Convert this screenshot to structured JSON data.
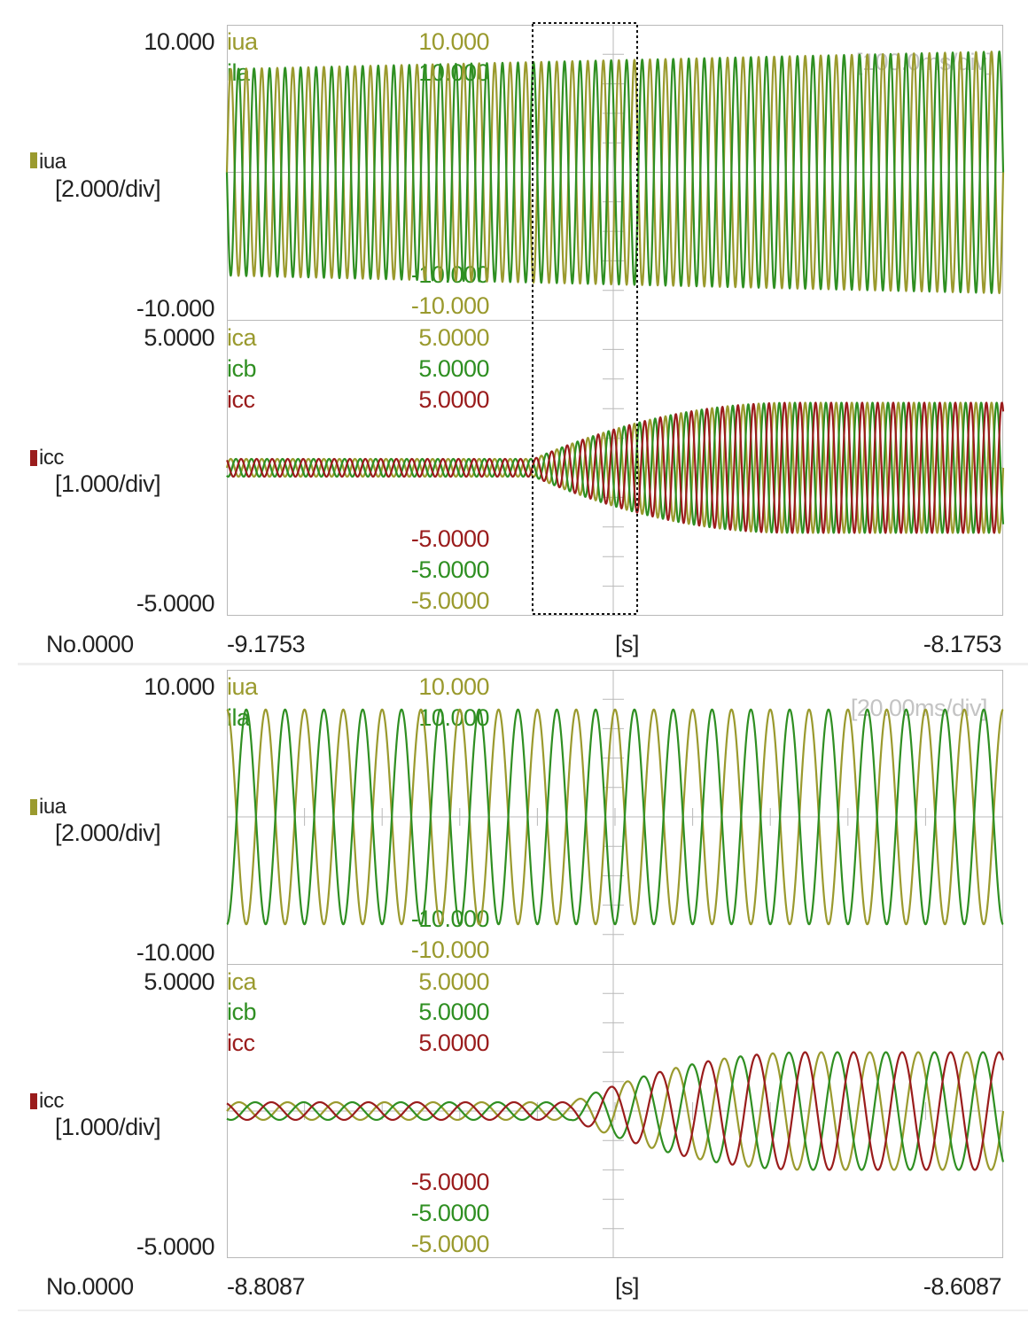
{
  "colors": {
    "iua": "#9a9a2e",
    "ila": "#2f8f22",
    "ica": "#9a9a2e",
    "icb": "#2f8f22",
    "icc": "#9a1c1c",
    "grid": "#b9b9b9",
    "timescale": "#c4c4c4"
  },
  "views": [
    {
      "timescale": "[100.0ms/div]",
      "record_no": "No.0000",
      "time_unit": "[s]",
      "t_start": "-9.1753",
      "t_end": "-8.1753",
      "selection_box": true,
      "top_panel": {
        "axis_max": "10.000",
        "axis_min": "-10.000",
        "marker_channel": "iua",
        "marker_scale": "[2.000/div]",
        "channels": [
          {
            "name": "iua",
            "max": "10.000",
            "min": "-10.000"
          },
          {
            "name": "ila",
            "max": "10.000",
            "min": "-10.000"
          }
        ]
      },
      "bottom_panel": {
        "axis_max": "5.0000",
        "axis_min": "-5.0000",
        "marker_channel": "icc",
        "marker_scale": "[1.000/div]",
        "channels": [
          {
            "name": "ica",
            "max": "5.0000",
            "min": "-5.0000"
          },
          {
            "name": "icb",
            "max": "5.0000",
            "min": "-5.0000"
          },
          {
            "name": "icc",
            "max": "5.0000",
            "min": "-5.0000"
          }
        ]
      }
    },
    {
      "timescale": "[20.00ms/div]",
      "record_no": "No.0000",
      "time_unit": "[s]",
      "t_start": "-8.8087",
      "t_end": "-8.6087",
      "selection_box": false,
      "top_panel": {
        "axis_max": "10.000",
        "axis_min": "-10.000",
        "marker_channel": "iua",
        "marker_scale": "[2.000/div]",
        "channels": [
          {
            "name": "iua",
            "max": "10.000",
            "min": "-10.000"
          },
          {
            "name": "ila",
            "max": "10.000",
            "min": "-10.000"
          }
        ]
      },
      "bottom_panel": {
        "axis_max": "5.0000",
        "axis_min": "-5.0000",
        "marker_channel": "icc",
        "marker_scale": "[1.000/div]",
        "channels": [
          {
            "name": "ica",
            "max": "5.0000",
            "min": "-5.0000"
          },
          {
            "name": "icb",
            "max": "5.0000",
            "min": "-5.0000"
          },
          {
            "name": "icc",
            "max": "5.0000",
            "min": "-5.0000"
          }
        ]
      }
    }
  ],
  "chart_data": [
    {
      "type": "line",
      "title": "",
      "timescale": "[100.0ms/div]",
      "x_range": [
        -9.1753,
        -8.1753
      ],
      "x_unit": "s",
      "panels": [
        {
          "ylim": [
            -10,
            10
          ],
          "series": [
            {
              "name": "iua",
              "waveform": "sine",
              "frequency_hz": 50,
              "amplitude_start": 7.0,
              "amplitude_end": 8.2,
              "phase_deg": 0
            },
            {
              "name": "ila",
              "waveform": "sine",
              "frequency_hz": 50,
              "amplitude_start": 7.0,
              "amplitude_end": 8.2,
              "phase_deg": 180
            }
          ]
        },
        {
          "ylim": [
            -5,
            5
          ],
          "series": [
            {
              "name": "ica",
              "waveform": "sine",
              "frequency_hz": 50,
              "amplitude_start": 0.3,
              "amplitude_end": 2.2,
              "phase_deg": 0,
              "growth_start_s": -8.78
            },
            {
              "name": "icb",
              "waveform": "sine",
              "frequency_hz": 50,
              "amplitude_start": 0.3,
              "amplitude_end": 2.2,
              "phase_deg": -120,
              "growth_start_s": -8.78
            },
            {
              "name": "icc",
              "waveform": "sine",
              "frequency_hz": 50,
              "amplitude_start": 0.3,
              "amplitude_end": 2.2,
              "phase_deg": 120,
              "growth_start_s": -8.78
            }
          ]
        }
      ]
    },
    {
      "type": "line",
      "title": "",
      "timescale": "[20.00ms/div]",
      "x_range": [
        -8.8087,
        -8.6087
      ],
      "x_unit": "s",
      "panels": [
        {
          "ylim": [
            -10,
            10
          ],
          "series": [
            {
              "name": "iua",
              "waveform": "sine",
              "frequency_hz": 100,
              "amplitude": 7.3,
              "phase_deg": 90
            },
            {
              "name": "ila",
              "waveform": "sine",
              "frequency_hz": 100,
              "amplitude": 7.3,
              "phase_deg": -90
            }
          ]
        },
        {
          "ylim": [
            -5,
            5
          ],
          "series": [
            {
              "name": "ica",
              "waveform": "sine",
              "frequency_hz": 80,
              "amplitude_start": 0.3,
              "amplitude_end": 2.0,
              "phase_deg": 0,
              "growth_start_s": -8.72
            },
            {
              "name": "icb",
              "waveform": "sine",
              "frequency_hz": 80,
              "amplitude_start": 0.3,
              "amplitude_end": 2.0,
              "phase_deg": -120,
              "growth_start_s": -8.72
            },
            {
              "name": "icc",
              "waveform": "sine",
              "frequency_hz": 80,
              "amplitude_start": 0.3,
              "amplitude_end": 2.0,
              "phase_deg": 120,
              "growth_start_s": -8.72
            }
          ]
        }
      ]
    }
  ]
}
